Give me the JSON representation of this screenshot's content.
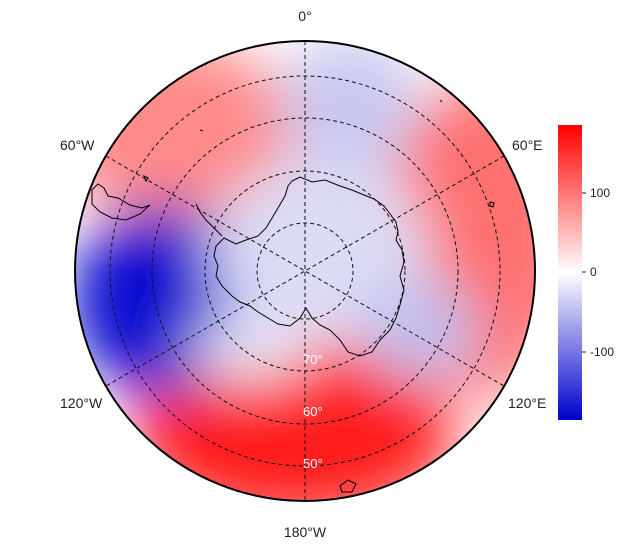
{
  "map": {
    "projection": "south-polar-stereographic",
    "longitude_labels": [
      "0°",
      "60°E",
      "120°E",
      "180°W",
      "120°W",
      "60°W"
    ],
    "latitude_labels": [
      "70°",
      "60°",
      "50°"
    ],
    "colormap": {
      "low": "#0000cc",
      "mid": "#ffffff",
      "high": "#ff0000"
    },
    "grid_style": "dashed"
  },
  "colorbar": {
    "tick_labels": [
      "100",
      "0",
      "-100"
    ],
    "tick_values": [
      100,
      0,
      -100
    ],
    "range": [
      -185,
      185
    ]
  }
}
